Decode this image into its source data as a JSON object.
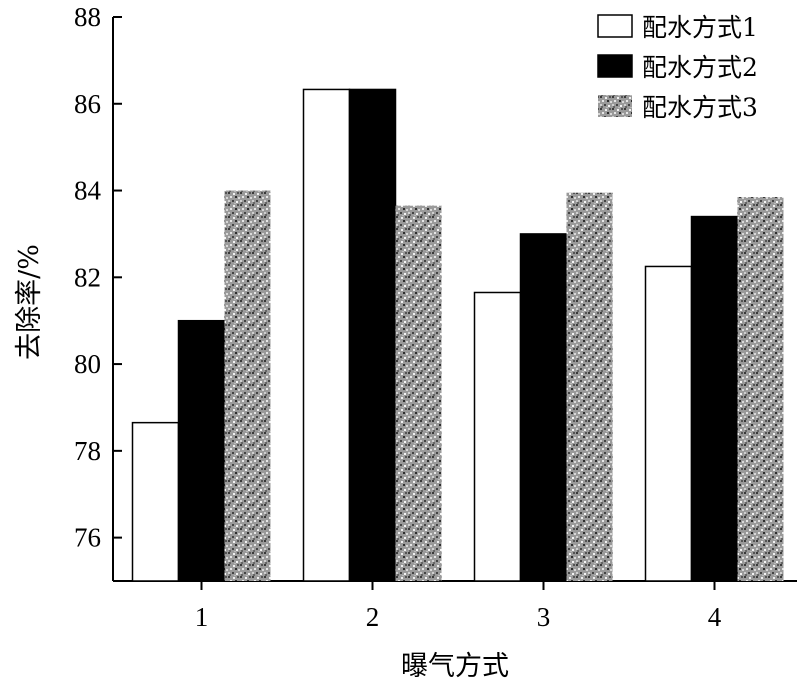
{
  "chart_data": {
    "type": "bar",
    "categories": [
      "1",
      "2",
      "3",
      "4"
    ],
    "series": [
      {
        "name": "配水方式1",
        "values": [
          78.65,
          86.33,
          81.65,
          82.25
        ],
        "fill": "#ffffff",
        "pattern": "none"
      },
      {
        "name": "配水方式2",
        "values": [
          81.0,
          86.33,
          83.0,
          83.4
        ],
        "fill": "#000000",
        "pattern": "none"
      },
      {
        "name": "配水方式3",
        "values": [
          84.0,
          83.65,
          83.95,
          83.85
        ],
        "fill": "#8a8a8a",
        "pattern": "speckled-gray"
      }
    ],
    "xlabel": "曝气方式",
    "ylabel": "去除率/%",
    "ylim": [
      75,
      88
    ],
    "yticks": [
      "76",
      "78",
      "80",
      "82",
      "84",
      "86",
      "88"
    ],
    "grid": false,
    "legend_position": "top-right"
  }
}
